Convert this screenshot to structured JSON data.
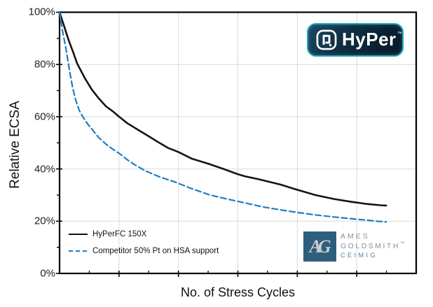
{
  "chart_data": {
    "type": "line",
    "title": "",
    "xlabel": "No. of Stress Cycles",
    "ylabel": "Relative ECSA",
    "ylim": [
      0,
      100
    ],
    "y_tick_labels_top_to_bottom": [
      "100%",
      "80%",
      "60%",
      "40%",
      "20%",
      "0%"
    ],
    "x_tick_labels": [],
    "x_major_divisions": 6,
    "grid": true,
    "gridline_color": "#d9d9d9",
    "axis_color": "#000000",
    "legend_position": "bottom-left-inside",
    "series": [
      {
        "name": "HyPerFC 150X",
        "color": "#141414",
        "style": "solid",
        "points": [
          [
            0,
            100
          ],
          [
            0.012,
            95
          ],
          [
            0.025,
            89.5
          ],
          [
            0.04,
            84
          ],
          [
            0.049,
            80.5
          ],
          [
            0.07,
            75
          ],
          [
            0.09,
            70.5
          ],
          [
            0.11,
            67
          ],
          [
            0.13,
            64
          ],
          [
            0.15,
            62
          ],
          [
            0.167,
            60
          ],
          [
            0.19,
            57.5
          ],
          [
            0.22,
            55
          ],
          [
            0.25,
            52.5
          ],
          [
            0.28,
            50
          ],
          [
            0.305,
            48
          ],
          [
            0.333,
            46.5
          ],
          [
            0.37,
            44
          ],
          [
            0.417,
            42
          ],
          [
            0.46,
            40
          ],
          [
            0.5,
            38
          ],
          [
            0.52,
            37.2
          ],
          [
            0.56,
            36
          ],
          [
            0.62,
            34
          ],
          [
            0.66,
            32.3
          ],
          [
            0.717,
            30
          ],
          [
            0.77,
            28.5
          ],
          [
            0.815,
            27.5
          ],
          [
            0.86,
            26.6
          ],
          [
            0.9,
            26.1
          ],
          [
            0.916,
            26
          ]
        ]
      },
      {
        "name": "Competitor 50% Pt on HSA support",
        "color": "#1b7ec6",
        "style": "dashed",
        "points": [
          [
            0,
            100
          ],
          [
            0.008,
            93
          ],
          [
            0.018,
            86
          ],
          [
            0.024,
            81
          ],
          [
            0.03,
            76
          ],
          [
            0.037,
            71
          ],
          [
            0.045,
            66.5
          ],
          [
            0.055,
            62.5
          ],
          [
            0.065,
            60
          ],
          [
            0.08,
            57
          ],
          [
            0.095,
            54.5
          ],
          [
            0.11,
            52
          ],
          [
            0.13,
            49.5
          ],
          [
            0.15,
            47.5
          ],
          [
            0.167,
            46
          ],
          [
            0.19,
            43.5
          ],
          [
            0.21,
            41.7
          ],
          [
            0.24,
            39.3
          ],
          [
            0.28,
            37
          ],
          [
            0.324,
            35
          ],
          [
            0.37,
            32.5
          ],
          [
            0.422,
            30
          ],
          [
            0.47,
            28.5
          ],
          [
            0.52,
            27
          ],
          [
            0.57,
            25.5
          ],
          [
            0.62,
            24.3
          ],
          [
            0.67,
            23.3
          ],
          [
            0.717,
            22.4
          ],
          [
            0.77,
            21.6
          ],
          [
            0.815,
            21
          ],
          [
            0.86,
            20.4
          ],
          [
            0.89,
            20
          ],
          [
            0.916,
            19.7
          ]
        ]
      }
    ]
  },
  "logos": {
    "hyper": {
      "text": "HyPer",
      "tm": "™",
      "bg_dark": "#0a2233",
      "accent": "#2aa3b6",
      "text_color": "#ffffff"
    },
    "ames_goldsmith": {
      "monogram": "AG",
      "line1": "AMES",
      "line2": "GOLDSMITH",
      "line2_tm": "™",
      "line3": "CEIMIG",
      "square_color": "#2d5f7d",
      "monogram_color": "#c9cccd",
      "text_gray": "#8b8d8e",
      "ceimig_color": "#4f7fa0"
    }
  }
}
